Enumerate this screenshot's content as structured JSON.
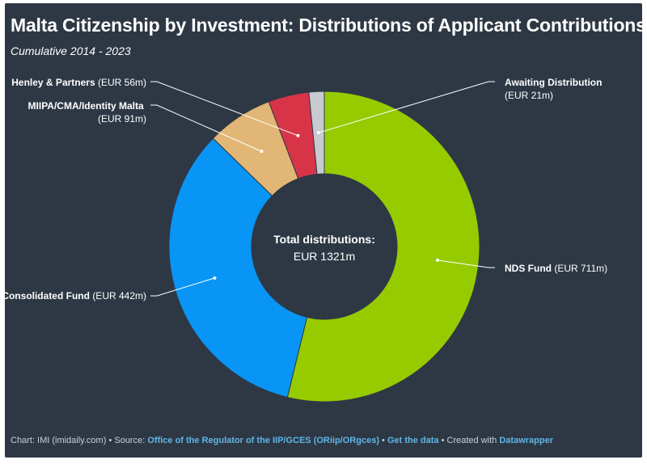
{
  "title": "Malta Citizenship by Investment: Distributions of Applicant Contributions",
  "subtitle": "Cumulative 2014 - 2023",
  "center_label": {
    "heading": "Total distributions:",
    "value": "EUR 1321m"
  },
  "footer": {
    "chart_prefix": "Chart: IMI (imidaily.com)",
    "source_prefix": "Source:",
    "source_link": "Office of the Regulator of the IIP/GCES (ORiip/ORgces)",
    "data_link": "Get the data",
    "created_prefix": "Created with",
    "created_link": "Datawrapper",
    "bullet": "•"
  },
  "chart_data": {
    "type": "pie",
    "variant": "donut",
    "title": "Malta Citizenship by Investment: Distributions of Applicant Contributions",
    "subtitle": "Cumulative 2014 - 2023",
    "unit": "EUR m",
    "total": 1321,
    "slices": [
      {
        "name": "NDS Fund",
        "value": 711,
        "value_label": "(EUR 711m)",
        "color": "#96cb00"
      },
      {
        "name": "Consolidated Fund",
        "value": 442,
        "value_label": "(EUR 442m)",
        "color": "#0995f5"
      },
      {
        "name": "MIIPA/CMA/Identity Malta",
        "value": 91,
        "value_label": "(EUR 91m)",
        "color": "#e2b675"
      },
      {
        "name": "Henley & Partners",
        "value": 56,
        "value_label": "(EUR 56m)",
        "color": "#d83448"
      },
      {
        "name": "Awaiting Distribution",
        "value": 21,
        "value_label": "(EUR 21m)",
        "color": "#c7cace"
      }
    ]
  }
}
